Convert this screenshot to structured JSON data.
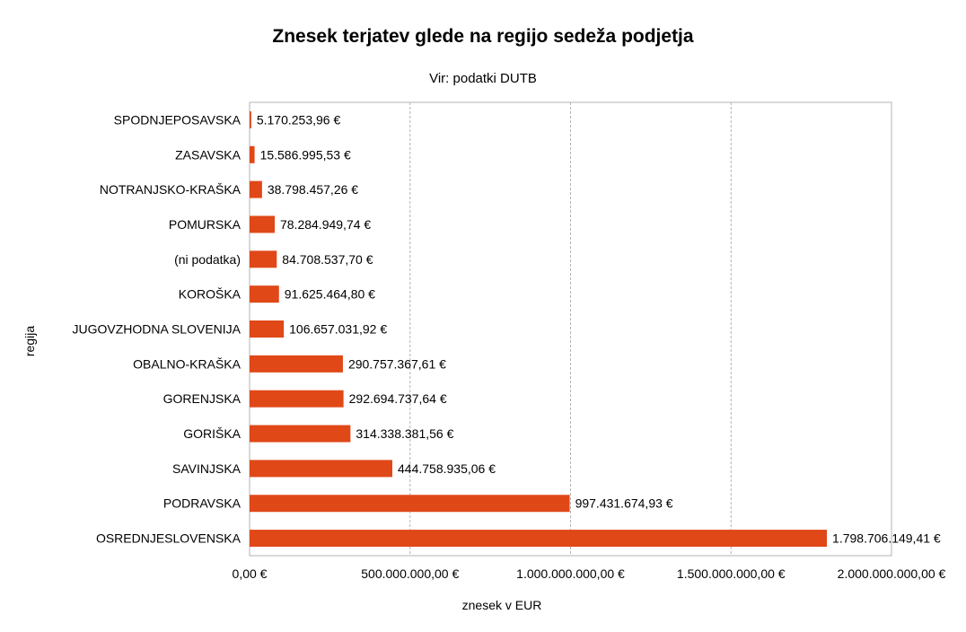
{
  "chart_data": {
    "type": "bar",
    "orientation": "horizontal",
    "title": "Znesek terjatev glede na regijo sedeža podjetja",
    "subtitle": "Vir: podatki DUTB",
    "xlabel": "znesek v EUR",
    "ylabel": "regija",
    "xlim": [
      0,
      2000000000
    ],
    "xticks": [
      0,
      500000000,
      1000000000,
      1500000000,
      2000000000
    ],
    "xtick_labels": [
      "0,00 €",
      "500.000.000,00 €",
      "1.000.000.000,00 €",
      "1.500.000.000,00 €",
      "2.000.000.000,00 €"
    ],
    "grid": "vertical",
    "legend": "none",
    "bar_color": "#e04818",
    "categories": [
      "SPODNJEPOSAVSKA",
      "ZASAVSKA",
      "NOTRANJSKO-KRAŠKA",
      "POMURSKA",
      "(ni podatka)",
      "KOROŠKA",
      "JUGOVZHODNA SLOVENIJA",
      "OBALNO-KRAŠKA",
      "GORENJSKA",
      "GORIŠKA",
      "SAVINJSKA",
      "PODRAVSKA",
      "OSREDNJESLOVENSKA"
    ],
    "values": [
      5170253.96,
      15586995.53,
      38798457.26,
      78284949.74,
      84708537.7,
      91625464.8,
      106657031.92,
      290757367.61,
      292694737.64,
      314338381.56,
      444758935.06,
      997431674.93,
      1798706149.41
    ],
    "value_labels": [
      "5.170.253,96 €",
      "15.586.995,53 €",
      "38.798.457,26 €",
      "78.284.949,74 €",
      "84.708.537,70 €",
      "91.625.464,80 €",
      "106.657.031,92 €",
      "290.757.367,61 €",
      "292.694.737,64 €",
      "314.338.381,56 €",
      "444.758.935,06 €",
      "997.431.674,93 €",
      "1.798.706.149,41 €"
    ]
  }
}
